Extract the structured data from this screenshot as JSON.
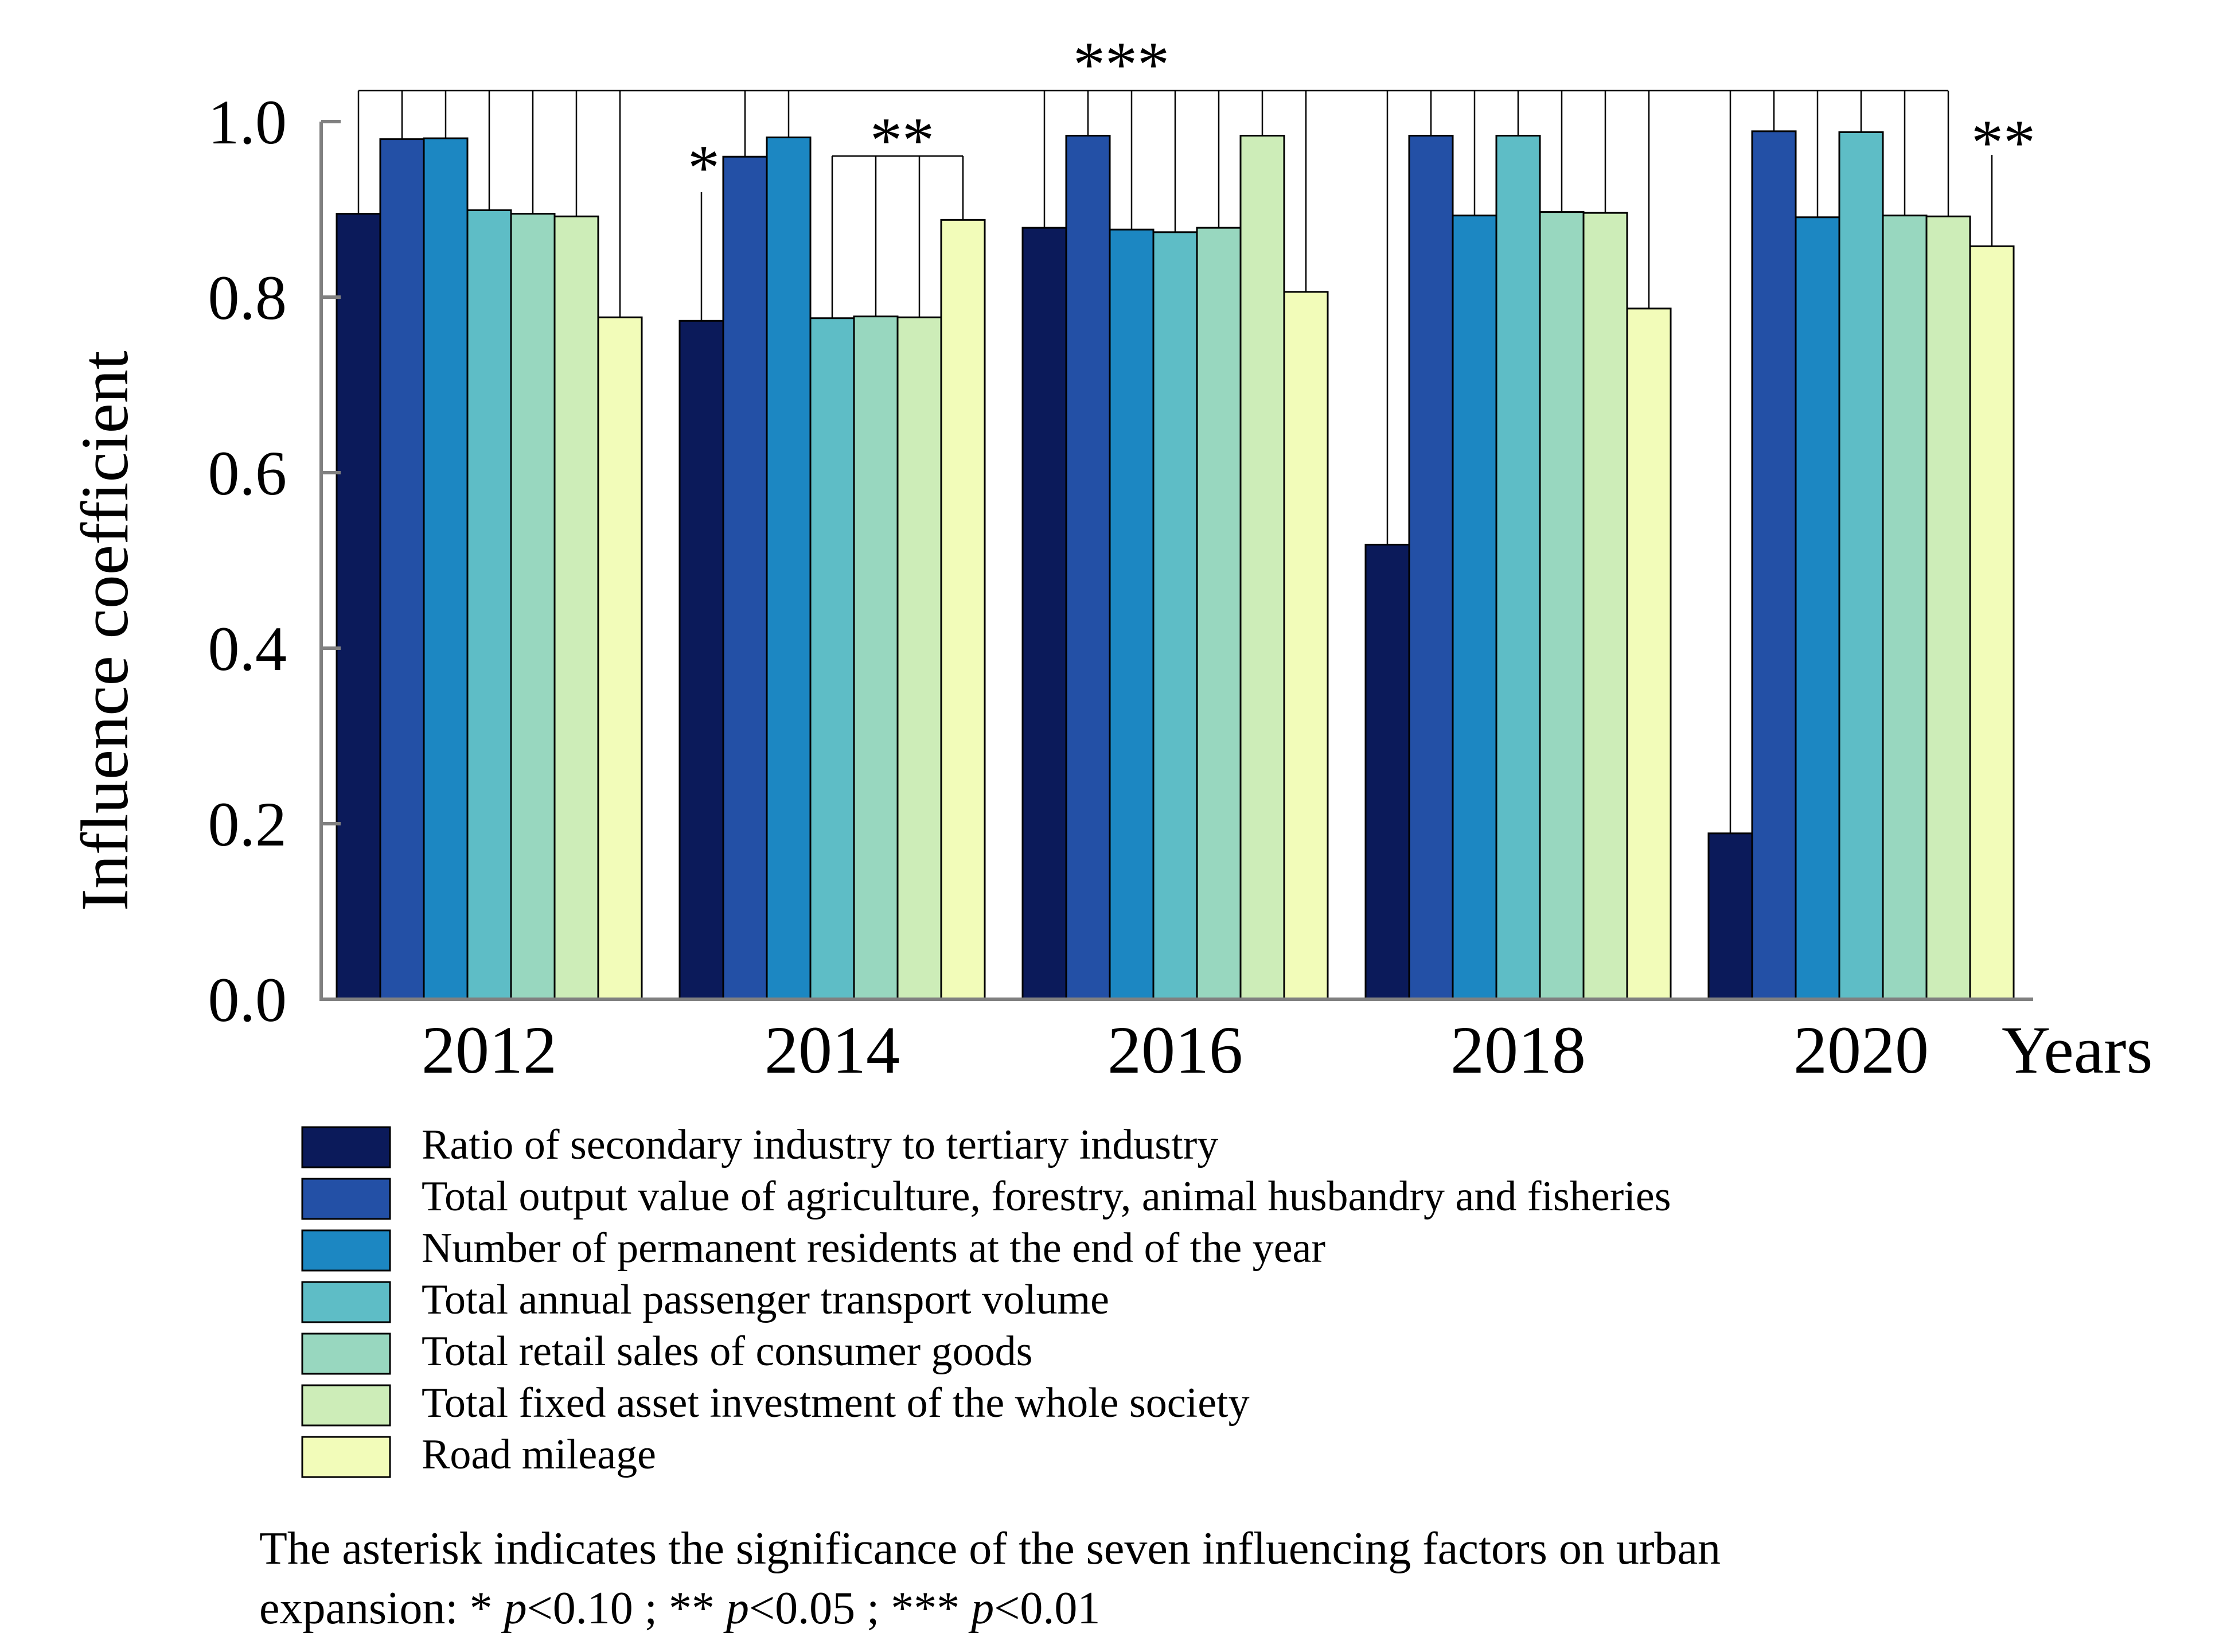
{
  "chart_data": {
    "type": "bar",
    "title": "",
    "xlabel": "Years",
    "ylabel": "Influence coefficient",
    "ylim": [
      0,
      1.0
    ],
    "yticks": [
      "0.0",
      "0.2",
      "0.4",
      "0.6",
      "0.8",
      "1.0"
    ],
    "grid": false,
    "legend_position": "bottom",
    "categories": [
      "2012",
      "2014",
      "2016",
      "2018",
      "2020"
    ],
    "series": [
      {
        "name": "Ratio of secondary industry to tertiary industry",
        "color": "#0b1a5a",
        "values": [
          0.895,
          0.773,
          0.879,
          0.518,
          0.189
        ]
      },
      {
        "name": "Total output value of agriculture, forestry, animal husbandry and fisheries",
        "color": "#2350a6",
        "values": [
          0.98,
          0.96,
          0.984,
          0.984,
          0.989
        ]
      },
      {
        "name": "Number of permanent residents at the end of the year",
        "color": "#1c87c2",
        "values": [
          0.981,
          0.982,
          0.877,
          0.893,
          0.891
        ]
      },
      {
        "name": "Total annual passenger transport volume",
        "color": "#5ebdc6",
        "values": [
          0.899,
          0.776,
          0.874,
          0.984,
          0.988
        ]
      },
      {
        "name": "Total retail sales of consumer goods",
        "color": "#98d7bf",
        "values": [
          0.895,
          0.778,
          0.879,
          0.897,
          0.893
        ]
      },
      {
        "name": "Total fixed asset investment of the whole society",
        "color": "#cdedb8",
        "values": [
          0.892,
          0.777,
          0.984,
          0.896,
          0.892
        ]
      },
      {
        "name": "Road mileage",
        "color": "#f2fcb9",
        "values": [
          0.777,
          0.888,
          0.806,
          0.787,
          0.858
        ]
      }
    ],
    "annotations": [
      {
        "text": "*",
        "meaning": "2014 ratio of secondary to tertiary industry"
      },
      {
        "text": "**",
        "meaning": "2014 passenger transport, retail sales, fixed asset investment, road mileage"
      },
      {
        "text": "***",
        "meaning": "all factors from 2012 to 2020"
      },
      {
        "text": "**",
        "meaning": "2020 road mileage"
      }
    ]
  },
  "footnote": {
    "line1": "The asterisk indicates the significance of the seven influencing factors on urban",
    "line2_prefix": "expansion: * ",
    "p1": "p",
    "t1": "<0.10  ;  ** ",
    "p2": "p",
    "t2": "<0.05  ;    *** ",
    "p3": "p",
    "t3": "<0.01"
  }
}
